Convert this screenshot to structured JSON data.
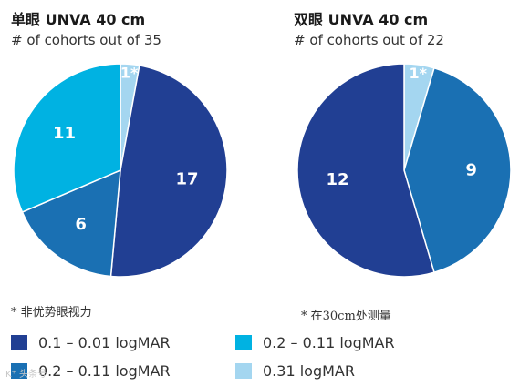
{
  "charts": [
    {
      "title": "单眼 UNVA 40 cm",
      "subtitle": "# of cohorts out of 35",
      "footnote": "* 非优势眼视力"
    },
    {
      "title": "双眼 UNVA 40 cm",
      "subtitle": "# of cohorts out of 22",
      "footnote": "* 在30cm处测量"
    }
  ],
  "legend": [
    {
      "label": "0.1 – 0.01 logMAR",
      "color": "#213f93"
    },
    {
      "label": "0.2 – 0.11 logMAR",
      "color": "#00b2e2"
    },
    {
      "label": "0.2 – 0.11 logMAR",
      "color": "#1a70b3"
    },
    {
      "label": "0.31 logMAR",
      "color": "#a4d6f0"
    }
  ],
  "watermark": "K⁺ 头条号",
  "chart_data": [
    {
      "type": "pie",
      "title": "单眼 UNVA 40 cm",
      "subtitle": "# of cohorts out of 35",
      "slices": [
        {
          "label": "1*",
          "value": 1,
          "color": "#a4d6f0"
        },
        {
          "label": "17",
          "value": 17,
          "color": "#213f93"
        },
        {
          "label": "6",
          "value": 6,
          "color": "#1a70b3"
        },
        {
          "label": "11",
          "value": 11,
          "color": "#00b2e2"
        }
      ],
      "total": 35
    },
    {
      "type": "pie",
      "title": "双眼 UNVA 40 cm",
      "subtitle": "# of cohorts out of 22",
      "slices": [
        {
          "label": "1*",
          "value": 1,
          "color": "#a4d6f0"
        },
        {
          "label": "9",
          "value": 9,
          "color": "#1a70b3"
        },
        {
          "label": "12",
          "value": 12,
          "color": "#213f93"
        }
      ],
      "total": 22
    }
  ]
}
